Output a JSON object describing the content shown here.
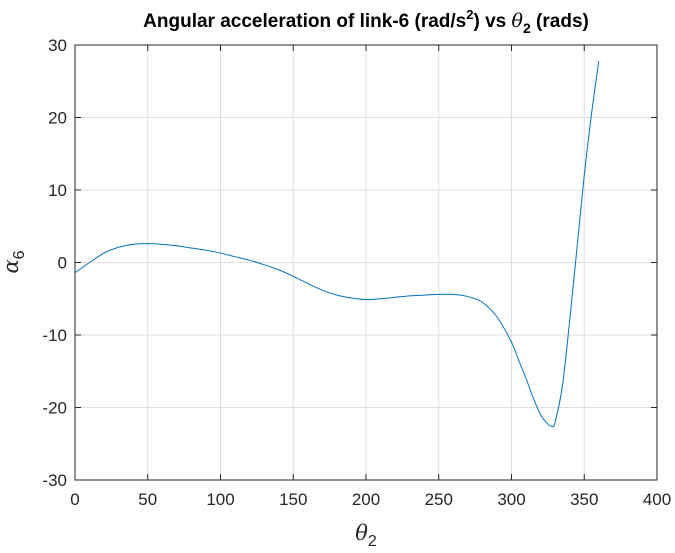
{
  "chart_data": {
    "type": "line",
    "title": {
      "prefix": "Angular acceleration of link-6 (rad/s",
      "sup": "2",
      "mid": ") vs ",
      "symbol": "θ",
      "sub": "2",
      "suffix": " (rads)"
    },
    "xlabel": {
      "symbol": "θ",
      "sub": "2"
    },
    "ylabel": {
      "symbol": "α",
      "sub": "6"
    },
    "xlim": [
      0,
      400
    ],
    "ylim": [
      -30,
      30
    ],
    "xticks": [
      "0",
      "50",
      "100",
      "150",
      "200",
      "250",
      "300",
      "350",
      "400"
    ],
    "yticks": [
      "-30",
      "-20",
      "-10",
      "0",
      "10",
      "20",
      "30"
    ],
    "grid": true,
    "line_color": "#0072BD",
    "series": [
      {
        "x": [
          0,
          10,
          20,
          30,
          40,
          50,
          60,
          70,
          80,
          90,
          100,
          110,
          120,
          130,
          140,
          150,
          160,
          170,
          180,
          190,
          200,
          210,
          220,
          230,
          240,
          250,
          260,
          270,
          280,
          290,
          300,
          305,
          310,
          315,
          320,
          325,
          328,
          330,
          335,
          340,
          345,
          350,
          355,
          360
        ],
        "y": [
          -1.4,
          0.0,
          1.3,
          2.1,
          2.5,
          2.6,
          2.5,
          2.3,
          2.0,
          1.7,
          1.3,
          0.8,
          0.3,
          -0.3,
          -1.0,
          -1.9,
          -2.9,
          -3.8,
          -4.5,
          -4.9,
          -5.1,
          -5.0,
          -4.8,
          -4.6,
          -4.5,
          -4.4,
          -4.4,
          -4.7,
          -5.5,
          -7.5,
          -11.0,
          -13.5,
          -16.0,
          -18.7,
          -21.0,
          -22.3,
          -22.6,
          -22.0,
          -17.0,
          -8.0,
          2.0,
          12.0,
          20.5,
          27.8
        ]
      }
    ]
  }
}
